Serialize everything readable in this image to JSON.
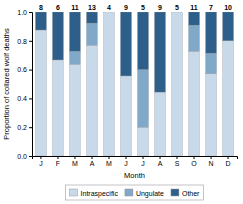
{
  "chart_data": {
    "type": "bar",
    "stacked": true,
    "categories": [
      "J",
      "F",
      "M",
      "A",
      "M",
      "J",
      "J",
      "A",
      "S",
      "O",
      "N",
      "D"
    ],
    "series": [
      {
        "name": "Intraspecific",
        "color": "#c8d9ea",
        "values": [
          0.875,
          0.667,
          0.636,
          0.769,
          1.0,
          0.556,
          0.2,
          0.444,
          1.0,
          0.727,
          0.571,
          0.8
        ]
      },
      {
        "name": "Ungulate",
        "color": "#7fa8c9",
        "values": [
          0.0,
          0.0,
          0.091,
          0.154,
          0.0,
          0.0,
          0.4,
          0.0,
          0.0,
          0.182,
          0.143,
          0.0
        ]
      },
      {
        "name": "Other",
        "color": "#2e5f8a",
        "values": [
          0.125,
          0.333,
          0.273,
          0.077,
          0.0,
          0.444,
          0.4,
          0.556,
          0.0,
          0.091,
          0.286,
          0.2
        ]
      }
    ],
    "counts": [
      8,
      6,
      11,
      13,
      4,
      9,
      5,
      9,
      5,
      11,
      7,
      10
    ],
    "x_label": "Month",
    "y_label": "Proportion of collared wolf deaths",
    "ylim": [
      0,
      1.0
    ],
    "yticks": [
      {
        "value": 0,
        "label": "0.0"
      },
      0.2,
      0.4,
      0.6,
      0.8,
      {
        "value": 1.0,
        "label": "1.0"
      }
    ],
    "grid": false,
    "legend": "bottom"
  }
}
